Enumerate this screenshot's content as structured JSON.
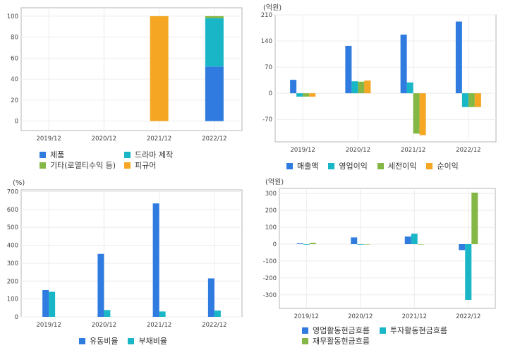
{
  "charts": [
    {
      "id": "product-mix",
      "unit": "",
      "legend": [
        [
          "제품",
          "드라마 제작"
        ],
        [
          "기타(로열티수익 등)",
          "피규어"
        ]
      ]
    },
    {
      "id": "income",
      "unit": "(억원)",
      "legend": [
        [
          "매출액",
          "영업이익",
          "세전이익",
          "순이익"
        ]
      ]
    },
    {
      "id": "ratios",
      "unit": "(%)",
      "legend": [
        [
          "유동비율",
          "부채비율"
        ]
      ]
    },
    {
      "id": "cashflow",
      "unit": "(억원)",
      "legend": [
        [
          "영업활동현금흐름",
          "투자활동현금흐름"
        ],
        [
          "재무활동현금흐름"
        ]
      ]
    }
  ],
  "colors": {
    "blue": "#2f7be0",
    "teal": "#19b6c8",
    "green": "#84b745",
    "orange": "#f5a623",
    "grid": "#ececec",
    "axis": "#b5b5b5"
  },
  "chart_data": [
    {
      "type": "bar",
      "stacked": true,
      "categories": [
        "2019/12",
        "2020/12",
        "2021/12",
        "2022/12"
      ],
      "series": [
        {
          "name": "제품",
          "values": [
            0,
            0,
            0,
            52
          ]
        },
        {
          "name": "드라마 제작",
          "values": [
            0,
            0,
            0,
            46
          ]
        },
        {
          "name": "기타(로열티수익 등)",
          "values": [
            0,
            0,
            0,
            2
          ]
        },
        {
          "name": "피규어",
          "values": [
            0,
            0,
            100,
            0
          ]
        }
      ],
      "yticks": [
        0,
        20,
        40,
        60,
        80,
        100
      ],
      "ylim": [
        -9,
        108
      ],
      "grid": true,
      "legend_position": "bottom-left"
    },
    {
      "type": "bar",
      "categories": [
        "2019/12",
        "2020/12",
        "2021/12",
        "2022/12"
      ],
      "series": [
        {
          "name": "매출액",
          "values": [
            36,
            127,
            157,
            192
          ]
        },
        {
          "name": "영업이익",
          "values": [
            -9,
            32,
            29,
            -37
          ]
        },
        {
          "name": "세전이익",
          "values": [
            -9,
            31,
            -108,
            -37
          ]
        },
        {
          "name": "순이익",
          "values": [
            -9,
            34,
            -112,
            -37
          ]
        }
      ],
      "yticks": [
        -70,
        0,
        70,
        140,
        210
      ],
      "ylim": [
        -130,
        210
      ],
      "grid": true,
      "legend_position": "bottom-left"
    },
    {
      "type": "bar",
      "categories": [
        "2019/12",
        "2020/12",
        "2021/12",
        "2022/12"
      ],
      "series": [
        {
          "name": "유동비율",
          "values": [
            150,
            352,
            634,
            215
          ]
        },
        {
          "name": "부채비율",
          "values": [
            140,
            38,
            30,
            35
          ]
        }
      ],
      "yticks": [
        0,
        100,
        200,
        300,
        400,
        500,
        600,
        700
      ],
      "ylim": [
        0,
        710
      ],
      "grid": true,
      "legend_position": "bottom-center"
    },
    {
      "type": "bar",
      "categories": [
        "2019/12",
        "2020/12",
        "2021/12",
        "2022/12"
      ],
      "series": [
        {
          "name": "영업활동현금흐름",
          "values": [
            5,
            40,
            45,
            -35
          ]
        },
        {
          "name": "투자활동현금흐름",
          "values": [
            -3,
            -3,
            62,
            -330
          ]
        },
        {
          "name": "재무활동현금흐름",
          "values": [
            8,
            0,
            0,
            305
          ]
        }
      ],
      "yticks": [
        -300,
        -200,
        -100,
        0,
        100,
        200,
        300
      ],
      "ylim": [
        -380,
        330
      ],
      "grid": true,
      "legend_position": "bottom-left"
    }
  ]
}
